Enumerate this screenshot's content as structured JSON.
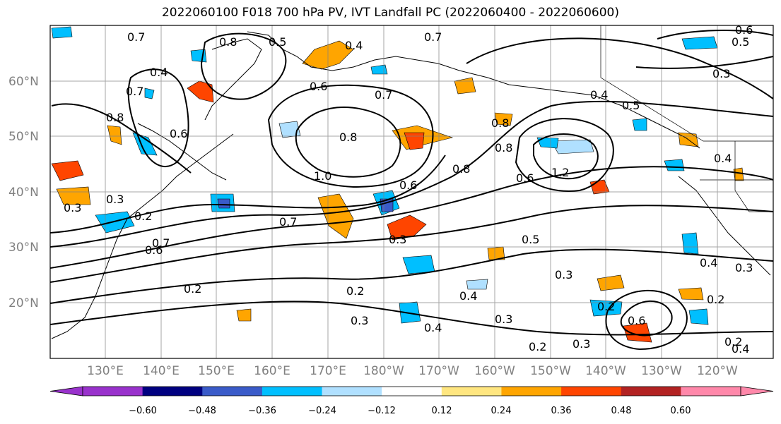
{
  "title": "2022060100 F018 700 hPa PV, IVT Landfall PC (2022060400 - 2022060600)",
  "map": {
    "lat_labels": [
      "60°N",
      "50°N",
      "40°N",
      "30°N",
      "20°N"
    ],
    "lon_labels": [
      "130°E",
      "140°E",
      "150°E",
      "160°E",
      "170°E",
      "180°W",
      "170°W",
      "160°W",
      "150°W",
      "140°W",
      "130°W",
      "120°W"
    ],
    "contour_labels": [
      "0.7",
      "0.8",
      "0.4",
      "0.4",
      "0.5",
      "0.7",
      "0.6",
      "0.6",
      "0.4",
      "0.7",
      "0.5",
      "0.8",
      "0.8",
      "0.6",
      "0.8",
      "0.7",
      "0.4",
      "0.5",
      "0.3",
      "0.8",
      "1.0",
      "0.8",
      "0.6",
      "0.6",
      "1.2",
      "0.3",
      "0.2",
      "0.3",
      "0.7",
      "0.6",
      "0.7",
      "0.3",
      "0.5",
      "0.3",
      "0.4",
      "0.3",
      "0.2",
      "0.2",
      "0.3",
      "0.4",
      "0.4",
      "0.3",
      "0.6",
      "0.2",
      "0.2",
      "0.3",
      "0.2",
      "0.4",
      "0.2"
    ]
  },
  "colorbar": {
    "ticks": [
      "−0.60",
      "−0.48",
      "−0.36",
      "−0.24",
      "−0.12",
      "0.12",
      "0.24",
      "0.36",
      "0.48",
      "0.60"
    ],
    "colors": [
      "#9932cc",
      "#000080",
      "#3a5bc9",
      "#00bfff",
      "#b0e0ff",
      "#ffffff",
      "#ffe680",
      "#ffa500",
      "#ff4500",
      "#b22222",
      "#ff88aa",
      "#ff88aa"
    ]
  }
}
